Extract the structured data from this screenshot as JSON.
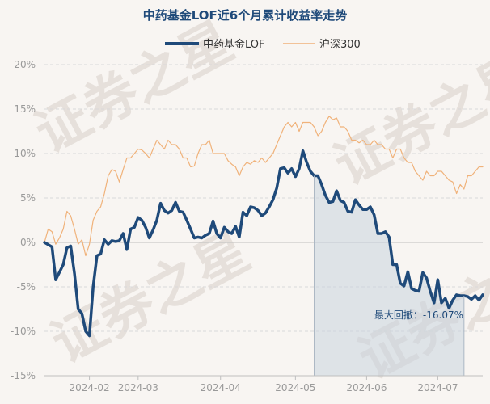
{
  "colors": {
    "background": "#f8f5f2",
    "fund_line": "#1f4a7a",
    "index_line": "#f0b27a",
    "drawdown_fill": "#c9d4df",
    "axis_text": "#9a9a9a",
    "title_text": "#1f4a7a",
    "annotation_text": "#1f4a7a",
    "grid": "#d9d9d9",
    "zero_line": "#bfbfbf",
    "watermark": "#e6e0db"
  },
  "watermark_text": "证券之星",
  "chart_data": {
    "type": "line",
    "title": "中药基金LOF近6个月累计收益率走势",
    "xlabel": "",
    "ylabel": "",
    "ylim": [
      -15,
      20
    ],
    "yticks": [
      20,
      15,
      10,
      5,
      0,
      -5,
      -10,
      -15
    ],
    "ytick_labels": [
      "20%",
      "15%",
      "10%",
      "5%",
      "0%",
      "-5%",
      "-10%",
      "-15%"
    ],
    "grid": true,
    "legend_position": "top-center",
    "x_range": [
      0,
      117
    ],
    "x_ticks": [
      {
        "x": 12,
        "label": "2024-02"
      },
      {
        "x": 25,
        "label": "2024-03"
      },
      {
        "x": 47,
        "label": "2024-04"
      },
      {
        "x": 67,
        "label": "2024-05"
      },
      {
        "x": 86,
        "label": "2024-06"
      },
      {
        "x": 105,
        "label": "2024-07"
      }
    ],
    "series": [
      {
        "name": "中药基金LOF",
        "color": "#1f4a7a",
        "width": 3.5,
        "x": [
          0,
          2,
          3,
          5,
          6,
          7,
          8,
          9,
          10,
          11,
          12,
          13,
          14,
          15,
          16,
          17,
          18,
          19,
          20,
          21,
          22,
          23,
          24,
          25,
          26,
          27,
          28,
          29,
          30,
          31,
          32,
          33,
          34,
          35,
          36,
          37,
          38,
          39,
          40,
          41,
          42,
          43,
          44,
          45,
          46,
          47,
          48,
          49,
          50,
          51,
          52,
          53,
          54,
          55,
          56,
          57,
          58,
          59,
          60,
          61,
          62,
          63,
          64,
          65,
          66,
          67,
          68,
          69,
          70,
          71,
          72,
          73,
          74,
          75,
          76,
          77,
          78,
          79,
          80,
          81,
          82,
          83,
          84,
          85,
          86,
          87,
          88,
          89,
          90,
          91,
          92,
          93,
          94,
          95,
          96,
          97,
          98,
          99,
          100,
          101,
          102,
          103,
          104,
          105,
          106,
          107,
          108,
          109,
          110,
          111,
          112,
          113,
          114,
          115,
          116,
          117
        ],
        "values": [
          0,
          -0.5,
          -4.2,
          -2.5,
          -0.6,
          -0.4,
          -3.5,
          -7.5,
          -8.0,
          -10.0,
          -10.5,
          -5.0,
          -1.5,
          -1.3,
          0.3,
          -0.2,
          0.2,
          0.1,
          0.2,
          1.0,
          -0.8,
          1.5,
          1.7,
          2.8,
          2.5,
          1.7,
          0.5,
          1.4,
          2.5,
          4.4,
          3.6,
          3.3,
          3.6,
          4.5,
          3.5,
          3.4,
          2.5,
          1.5,
          0.5,
          0.6,
          0.5,
          0.8,
          1.0,
          2.4,
          1.0,
          0.5,
          1.7,
          1.2,
          1.0,
          1.8,
          0.6,
          3.4,
          3.0,
          4.0,
          3.9,
          3.6,
          3.0,
          3.3,
          4.0,
          4.8,
          6.1,
          8.3,
          8.4,
          7.8,
          8.3,
          7.4,
          8.3,
          10.3,
          9.0,
          8.0,
          7.5,
          7.5,
          6.5,
          5.3,
          4.5,
          4.6,
          5.8,
          4.7,
          4.5,
          3.5,
          3.4,
          4.8,
          4.2,
          3.7,
          3.7,
          4.0,
          3.1,
          1.0,
          1.0,
          1.2,
          0.6,
          -2.5,
          -2.5,
          -4.6,
          -4.9,
          -3.3,
          -5.2,
          -5.4,
          -5.5,
          -3.4,
          -4.0,
          -5.5,
          -6.8,
          -4.2,
          -6.8,
          -6.3,
          -7.4,
          -6.5,
          -5.9,
          -6.0,
          -6.0,
          -6.1,
          -6.4,
          -6.0,
          -6.5,
          -5.9
        ]
      },
      {
        "name": "沪深300",
        "color": "#f0b27a",
        "width": 1.2,
        "x": [
          0,
          1,
          2,
          3,
          4,
          5,
          6,
          7,
          8,
          9,
          10,
          11,
          12,
          13,
          14,
          15,
          16,
          17,
          18,
          19,
          20,
          21,
          22,
          23,
          24,
          25,
          26,
          27,
          28,
          29,
          30,
          31,
          32,
          33,
          34,
          35,
          36,
          37,
          38,
          39,
          40,
          41,
          42,
          43,
          44,
          45,
          46,
          47,
          48,
          49,
          50,
          51,
          52,
          53,
          54,
          55,
          56,
          57,
          58,
          59,
          60,
          61,
          62,
          63,
          64,
          65,
          66,
          67,
          68,
          69,
          70,
          71,
          72,
          73,
          74,
          75,
          76,
          77,
          78,
          79,
          80,
          81,
          82,
          83,
          84,
          85,
          86,
          87,
          88,
          89,
          90,
          91,
          92,
          93,
          94,
          95,
          96,
          97,
          98,
          99,
          100,
          101,
          102,
          103,
          104,
          105,
          106,
          107,
          108,
          109,
          110,
          111,
          112,
          113,
          114,
          115,
          116,
          117
        ],
        "values": [
          0,
          1.5,
          1.2,
          -0.2,
          0.5,
          1.5,
          3.5,
          3.0,
          1.5,
          -0.2,
          0.3,
          -1.5,
          -0.2,
          2.5,
          3.5,
          4.0,
          5.5,
          7.5,
          8.2,
          8.0,
          6.8,
          8.2,
          9.5,
          9.5,
          10.0,
          10.5,
          10.4,
          10.0,
          9.5,
          10.5,
          11.5,
          11.0,
          10.5,
          11.5,
          11.0,
          11.0,
          10.5,
          9.5,
          9.5,
          8.5,
          8.6,
          10.0,
          11.0,
          11.0,
          11.5,
          10.0,
          10.0,
          10.0,
          10.0,
          9.2,
          8.8,
          8.5,
          7.5,
          8.5,
          9.0,
          8.8,
          9.2,
          9.0,
          9.5,
          9.0,
          9.5,
          10.0,
          11.0,
          12.0,
          13.0,
          13.5,
          13.0,
          13.5,
          12.5,
          13.5,
          13.5,
          13.5,
          13.0,
          12.0,
          12.5,
          13.5,
          14.2,
          13.8,
          14.0,
          13.0,
          13.0,
          12.5,
          11.5,
          11.5,
          11.2,
          11.5,
          11.0,
          11.0,
          11.5,
          11.0,
          11.0,
          10.5,
          10.5,
          9.5,
          10.5,
          10.5,
          9.5,
          9.0,
          9.0,
          8.0,
          7.5,
          7.0,
          8.0,
          7.5,
          7.5,
          8.0,
          8.0,
          7.5,
          7.0,
          6.8,
          5.5,
          6.5,
          6.0,
          7.5,
          7.5,
          8.0,
          8.5,
          8.5
        ]
      }
    ],
    "drawdown": {
      "start_x": 72,
      "end_x": 112,
      "label": "最大回撤：-16.07%"
    }
  }
}
